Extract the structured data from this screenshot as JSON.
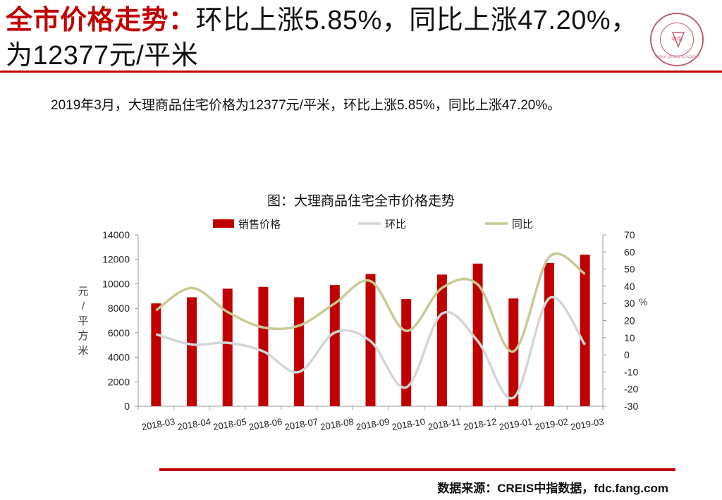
{
  "title": {
    "highlight": "全市价格走势：",
    "rest": "环比上涨5.85%，同比上涨47.20%，为12377元/平米"
  },
  "logo": {
    "icon": "china-index-academy-seal",
    "text": "CHINA INDEX ACADEMY",
    "center": "中指"
  },
  "summary": "2019年3月，大理商品住宅价格为12377元/平米，环比上涨5.85%，同比上涨47.20%。",
  "colors": {
    "accent": "#c00000",
    "bar": "#c00000",
    "mom": "#d3d6d8",
    "yoy": "#c9c995"
  },
  "chart_data": {
    "type": "bar",
    "title": "图：大理商品住宅全市价格走势",
    "categories": [
      "2018-03",
      "2018-04",
      "2018-05",
      "2018-06",
      "2018-07",
      "2018-08",
      "2018-09",
      "2018-10",
      "2018-11",
      "2018-12",
      "2019-01",
      "2019-02",
      "2019-03"
    ],
    "ylabel": "元/平方米",
    "ylim": [
      0,
      14000
    ],
    "yticks": [
      "0",
      "2000",
      "4000",
      "6000",
      "8000",
      "10000",
      "12000",
      "14000"
    ],
    "y2label": "%",
    "y2lim": [
      -30,
      70
    ],
    "y2ticks": [
      "-30",
      "-20",
      "-10",
      "0",
      "10",
      "20",
      "30",
      "40",
      "50",
      "60",
      "70"
    ],
    "series": [
      {
        "name": "销售价格",
        "kind": "bar",
        "axis": "left",
        "values": [
          8400,
          8900,
          9600,
          9750,
          8900,
          9900,
          10800,
          8750,
          10750,
          11650,
          8800,
          11700,
          12377
        ]
      },
      {
        "name": "环比",
        "kind": "line",
        "axis": "right",
        "values": [
          12,
          6,
          7,
          2,
          -10,
          13,
          8,
          -19,
          24,
          8,
          -25,
          33,
          5.85
        ]
      },
      {
        "name": "同比",
        "kind": "line",
        "axis": "right",
        "values": [
          26,
          39,
          25,
          16,
          17,
          30,
          43,
          14,
          39,
          41,
          2,
          57,
          47.2
        ]
      }
    ],
    "legend": "top",
    "grid": false
  },
  "source": "数据来源：CREIS中指数据，fdc.fang.com"
}
